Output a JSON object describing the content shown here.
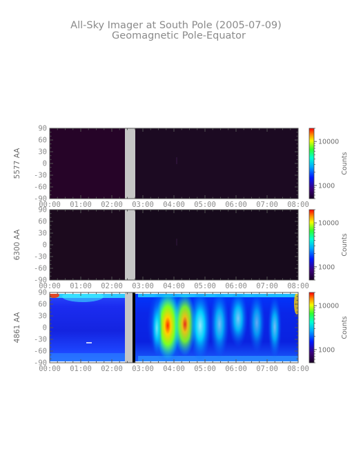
{
  "header": {
    "title": "All-Sky Imager at South Pole (2005-07-09)",
    "subtitle": "Geomagnetic Pole-Equator"
  },
  "chart_data": [
    {
      "type": "heatmap",
      "ylabel": "5577 AA",
      "x_ticks": [
        "00:00",
        "01:00",
        "02:00",
        "03:00",
        "04:00",
        "05:00",
        "06:00",
        "07:00",
        "08:00"
      ],
      "y_ticks": [
        90,
        60,
        30,
        0,
        -30,
        -60,
        -90
      ],
      "xlim_hours": [
        0,
        8
      ],
      "ylim": [
        -90,
        90
      ],
      "data_gap_hours": [
        2.45,
        2.8
      ],
      "colorbar": {
        "label": "Counts",
        "ticks": [
          1000,
          10000
        ],
        "tick_labels": [
          "1000",
          "10000"
        ],
        "range": [
          500,
          20000
        ],
        "scale": "log"
      },
      "intensity_level": "low"
    },
    {
      "type": "heatmap",
      "ylabel": "6300 AA",
      "x_ticks": [
        "00:00",
        "01:00",
        "02:00",
        "03:00",
        "04:00",
        "05:00",
        "06:00",
        "07:00",
        "08:00"
      ],
      "y_ticks": [
        90,
        60,
        30,
        0,
        -30,
        -60,
        -90
      ],
      "xlim_hours": [
        0,
        8
      ],
      "ylim": [
        -90,
        90
      ],
      "data_gap_hours": [
        2.45,
        2.8
      ],
      "colorbar": {
        "label": "Counts",
        "ticks": [
          1000,
          10000
        ],
        "tick_labels": [
          "1000",
          "10000"
        ],
        "range": [
          500,
          20000
        ],
        "scale": "log"
      },
      "intensity_level": "low"
    },
    {
      "type": "heatmap",
      "ylabel": "4861 AA",
      "x_ticks": [
        "00:00",
        "01:00",
        "02:00",
        "03:00",
        "04:00",
        "05:00",
        "06:00",
        "07:00",
        "08:00"
      ],
      "y_ticks": [
        90,
        60,
        30,
        0,
        -30,
        -60,
        -90
      ],
      "xlim_hours": [
        0,
        8
      ],
      "ylim": [
        -90,
        90
      ],
      "data_gap_hours": [
        2.45,
        2.8
      ],
      "colorbar": {
        "label": "Counts",
        "ticks": [
          1000,
          10000
        ],
        "tick_labels": [
          "1000",
          "10000"
        ],
        "range": [
          500,
          20000
        ],
        "scale": "log"
      },
      "intensity_level": "high",
      "bright_events_hours": [
        3.6,
        3.9,
        4.2,
        5.3,
        5.8,
        6.3,
        6.8,
        7.3
      ]
    }
  ]
}
